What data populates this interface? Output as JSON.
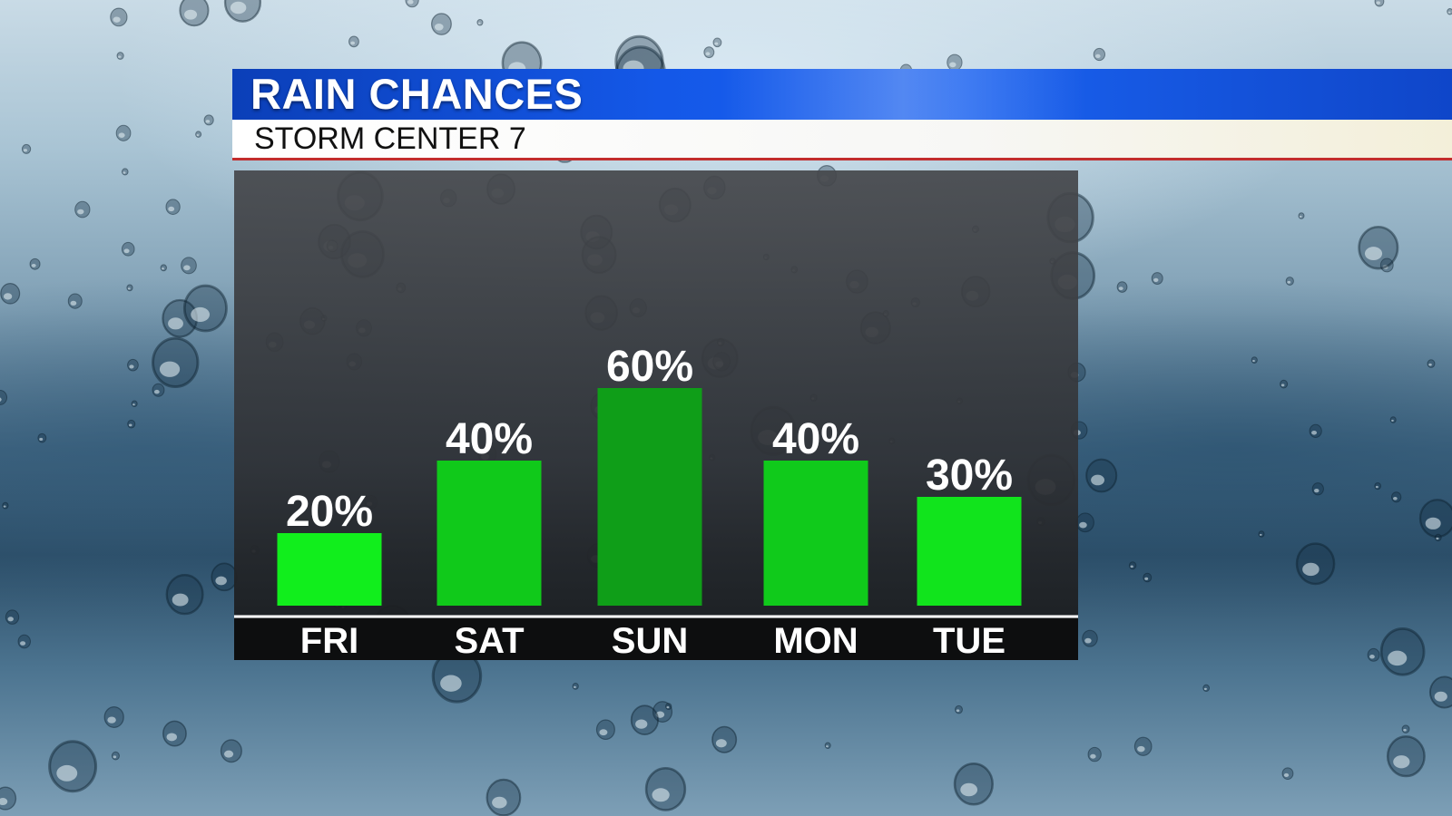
{
  "header": {
    "title": "RAIN CHANCES",
    "subtitle": "STORM CENTER 7"
  },
  "colors": {
    "title_bar": "#1458e8",
    "subtitle_underline": "#c22d2d",
    "bar_default": "#11e619",
    "bar_peak": "#0fa41a",
    "panel": "#3a3c40"
  },
  "chart_data": {
    "type": "bar",
    "categories": [
      "FRI",
      "SAT",
      "SUN",
      "MON",
      "TUE"
    ],
    "values": [
      20,
      40,
      60,
      40,
      30
    ],
    "value_labels": [
      "20%",
      "40%",
      "60%",
      "40%",
      "30%"
    ],
    "bar_colors": [
      "#11ee1c",
      "#10c91a",
      "#0f9e18",
      "#10ca1b",
      "#11e41c"
    ],
    "ylim": [
      0,
      100
    ],
    "unit": "%",
    "grid": false,
    "legend": "none"
  }
}
